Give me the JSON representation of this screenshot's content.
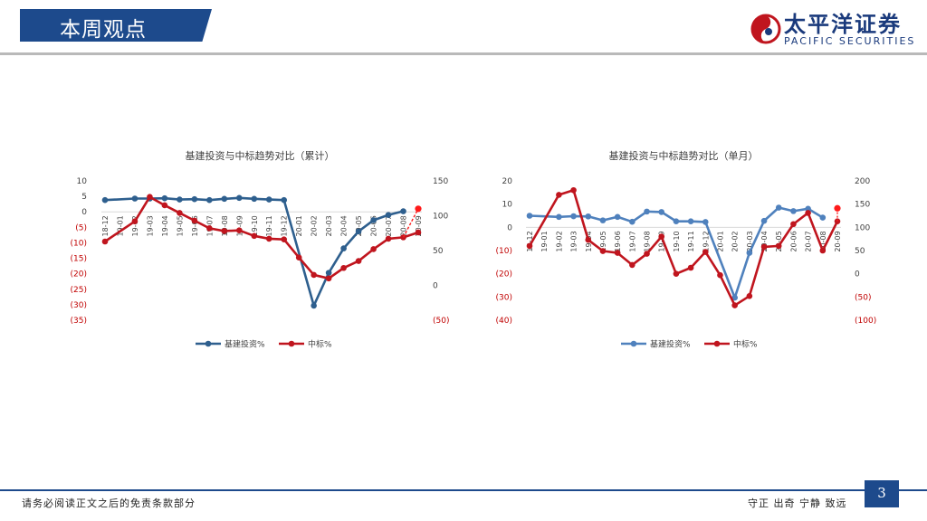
{
  "header": {
    "title": "本周观点"
  },
  "logo": {
    "cn": "太平洋证券",
    "en": "PACIFIC SECURITIES"
  },
  "footer": {
    "left": "请务必阅读正文之后的免责条款部分",
    "right": "守正  出奇  宁静  致远",
    "page": "3"
  },
  "colors": {
    "infra": "#2e5f8e",
    "bid": "#c0151e",
    "infra_light": "#4f81bd",
    "bid_red": "#ff1a1a",
    "neg_label": "#c00000"
  },
  "chart_data": [
    {
      "type": "line",
      "title": "基建投资与中标趋势对比（累计）",
      "categories": [
        "18-12",
        "19-01",
        "19-02",
        "19-03",
        "19-04",
        "19-05",
        "19-06",
        "19-07",
        "19-08",
        "19-09",
        "19-10",
        "19-11",
        "19-12",
        "20-01",
        "20-02",
        "20-03",
        "20-04",
        "20-05",
        "20-06",
        "20-07",
        "20-08",
        "20-09"
      ],
      "left_axis": {
        "range": [
          -35,
          10
        ],
        "ticks": [
          10,
          5,
          0,
          -5,
          -10,
          -15,
          -20,
          -25,
          -30,
          -35
        ],
        "labels": [
          "10",
          "5",
          "0",
          "(5)",
          "(10)",
          "(15)",
          "(20)",
          "(25)",
          "(30)",
          "(35)"
        ]
      },
      "right_axis": {
        "range": [
          -50,
          150
        ],
        "ticks": [
          150,
          100,
          50,
          0,
          -50
        ],
        "labels": [
          "150",
          "100",
          "50",
          "0",
          "(50)"
        ]
      },
      "series": [
        {
          "name": "基建投资%",
          "axis": "left",
          "values": [
            3.8,
            null,
            4.3,
            4.3,
            4.4,
            4.0,
            4.1,
            3.8,
            4.2,
            4.5,
            4.2,
            4.0,
            3.8,
            null,
            -30.3,
            -19.7,
            -11.8,
            -6.3,
            -2.7,
            -1.0,
            0.2,
            null
          ]
        },
        {
          "name": "中标%",
          "axis": "right",
          "values": [
            63,
            null,
            92,
            127,
            115,
            104,
            93,
            82,
            78,
            79,
            71,
            67,
            66,
            40,
            15,
            10,
            25,
            35,
            52,
            67,
            69,
            76
          ],
          "projected": {
            "from_index": 20,
            "to_index": 21,
            "value": 110
          }
        }
      ]
    },
    {
      "type": "line",
      "title": "基建投资与中标趋势对比（单月）",
      "categories": [
        "18-12",
        "19-01",
        "19-02",
        "19-03",
        "19-04",
        "19-05",
        "19-06",
        "19-07",
        "19-08",
        "19-09",
        "19-10",
        "19-11",
        "19-12",
        "20-01",
        "20-02",
        "20-03",
        "20-04",
        "20-05",
        "20-06",
        "20-07",
        "20-08",
        "20-09"
      ],
      "left_axis": {
        "range": [
          -40,
          20
        ],
        "ticks": [
          20,
          10,
          0,
          -10,
          -20,
          -30,
          -40
        ],
        "labels": [
          "20",
          "10",
          "0",
          "(10)",
          "(20)",
          "(30)",
          "(40)"
        ]
      },
      "right_axis": {
        "range": [
          -100,
          200
        ],
        "ticks": [
          200,
          150,
          100,
          50,
          0,
          -50,
          -100
        ],
        "labels": [
          "200",
          "150",
          "100",
          "50",
          "0",
          "(50)",
          "(100)"
        ]
      },
      "series": [
        {
          "name": "基建投资%",
          "axis": "left",
          "values": [
            5.0,
            null,
            4.5,
            4.8,
            4.7,
            3.0,
            4.5,
            2.4,
            6.8,
            6.6,
            2.6,
            2.6,
            2.3,
            null,
            -30.3,
            -11.0,
            2.8,
            8.5,
            7.0,
            8.0,
            4.2,
            null
          ]
        },
        {
          "name": "中标%",
          "axis": "right",
          "values": [
            60,
            null,
            170,
            180,
            73,
            49,
            45,
            19,
            43,
            80,
            0,
            13,
            47,
            -3,
            -68,
            -48,
            58,
            60,
            107,
            131,
            50,
            113
          ],
          "projected": {
            "from_index": 21,
            "to_index": 21,
            "value": 141
          }
        }
      ]
    }
  ]
}
